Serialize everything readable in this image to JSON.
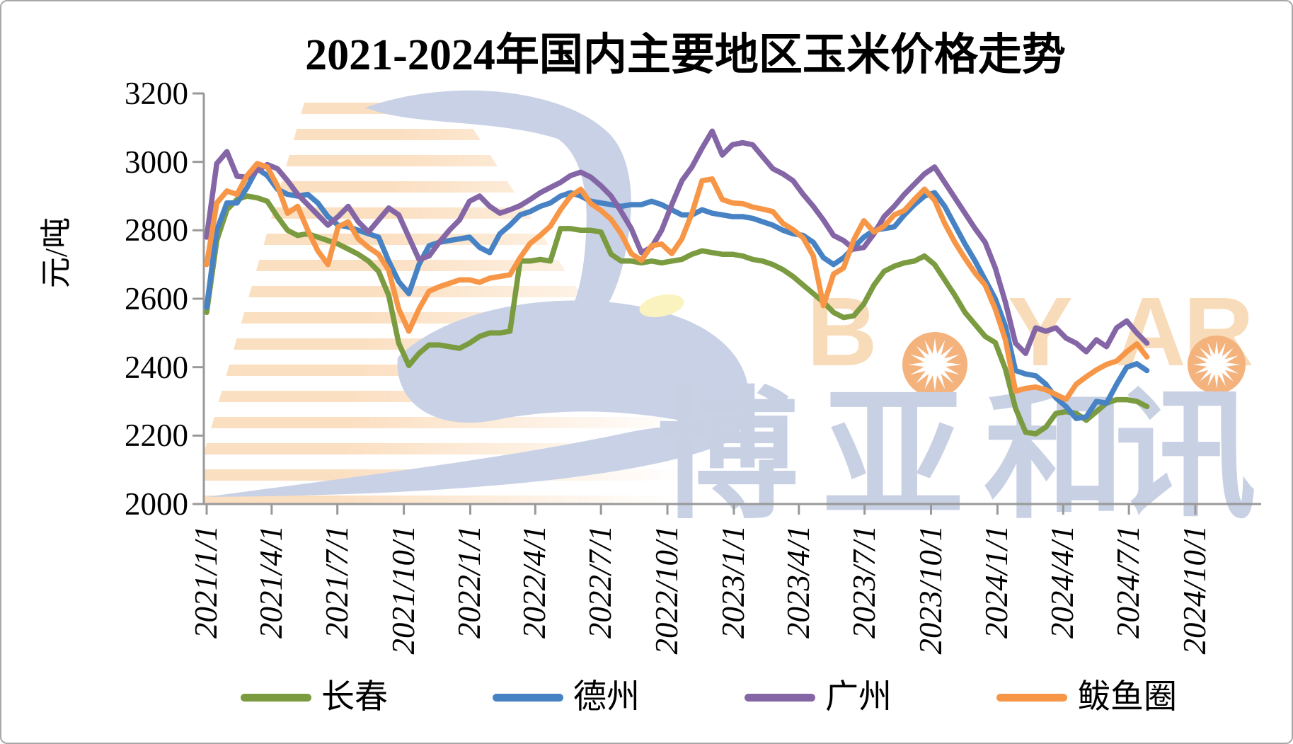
{
  "chart_data": {
    "type": "line",
    "title": "2021-2024年国内主要地区玉米价格走势",
    "y_axis_title": "元/吨",
    "ylim": [
      2000,
      3200
    ],
    "y_ticks": [
      3200,
      3000,
      2800,
      2600,
      2400,
      2200,
      2000
    ],
    "x_ticks": [
      {
        "label": "2021/1/1",
        "day": 0
      },
      {
        "label": "2021/4/1",
        "day": 90
      },
      {
        "label": "2021/7/1",
        "day": 181
      },
      {
        "label": "2021/10/1",
        "day": 273
      },
      {
        "label": "2022/1/1",
        "day": 365
      },
      {
        "label": "2022/4/1",
        "day": 455
      },
      {
        "label": "2022/7/1",
        "day": 546
      },
      {
        "label": "2022/10/1",
        "day": 638
      },
      {
        "label": "2023/1/1",
        "day": 730
      },
      {
        "label": "2023/4/1",
        "day": 820
      },
      {
        "label": "2023/7/1",
        "day": 911
      },
      {
        "label": "2023/10/1",
        "day": 1003
      },
      {
        "label": "2024/1/1",
        "day": 1095
      },
      {
        "label": "2024/4/1",
        "day": 1186
      },
      {
        "label": "2024/7/1",
        "day": 1277
      },
      {
        "label": "2024/10/1",
        "day": 1369
      }
    ],
    "x_start_date": "2021-01-01",
    "x_step_days": 14,
    "grid": false,
    "legend_position": "bottom",
    "axis_color": "#999999",
    "series": [
      {
        "name": "长春",
        "color": "#7b9b40",
        "values": [
          2560,
          2770,
          2860,
          2890,
          2900,
          2895,
          2885,
          2840,
          2800,
          2785,
          2790,
          2780,
          2770,
          2760,
          2745,
          2730,
          2710,
          2680,
          2610,
          2470,
          2405,
          2440,
          2465,
          2465,
          2460,
          2455,
          2470,
          2490,
          2500,
          2500,
          2505,
          2710,
          2710,
          2715,
          2710,
          2805,
          2805,
          2800,
          2800,
          2795,
          2730,
          2710,
          2710,
          2705,
          2710,
          2705,
          2710,
          2715,
          2730,
          2740,
          2735,
          2730,
          2730,
          2725,
          2715,
          2710,
          2700,
          2685,
          2665,
          2640,
          2615,
          2590,
          2560,
          2545,
          2550,
          2585,
          2640,
          2680,
          2695,
          2705,
          2710,
          2725,
          2700,
          2655,
          2610,
          2560,
          2525,
          2490,
          2472,
          2395,
          2280,
          2210,
          2205,
          2225,
          2265,
          2270,
          2265,
          2245,
          2270,
          2295,
          2305,
          2305,
          2300,
          2285
        ]
      },
      {
        "name": "德州",
        "color": "#4783c4",
        "values": [
          2575,
          2800,
          2880,
          2880,
          2925,
          2980,
          2960,
          2920,
          2905,
          2900,
          2905,
          2880,
          2840,
          2815,
          2810,
          2800,
          2790,
          2780,
          2710,
          2650,
          2615,
          2700,
          2755,
          2765,
          2770,
          2775,
          2780,
          2750,
          2735,
          2790,
          2815,
          2845,
          2855,
          2870,
          2880,
          2900,
          2910,
          2900,
          2885,
          2880,
          2875,
          2870,
          2875,
          2875,
          2885,
          2875,
          2860,
          2845,
          2845,
          2860,
          2850,
          2845,
          2840,
          2840,
          2835,
          2825,
          2815,
          2800,
          2790,
          2785,
          2765,
          2720,
          2700,
          2720,
          2750,
          2780,
          2800,
          2805,
          2810,
          2845,
          2875,
          2900,
          2910,
          2870,
          2815,
          2760,
          2710,
          2655,
          2600,
          2520,
          2390,
          2380,
          2375,
          2350,
          2310,
          2285,
          2250,
          2255,
          2300,
          2295,
          2350,
          2400,
          2410,
          2390
        ]
      },
      {
        "name": "广州",
        "color": "#8465a6",
        "values": [
          2780,
          2995,
          3030,
          2958,
          2955,
          2975,
          2992,
          2980,
          2945,
          2905,
          2875,
          2845,
          2815,
          2840,
          2870,
          2825,
          2795,
          2830,
          2865,
          2845,
          2780,
          2715,
          2725,
          2765,
          2800,
          2830,
          2885,
          2900,
          2870,
          2850,
          2860,
          2872,
          2890,
          2910,
          2925,
          2940,
          2960,
          2970,
          2955,
          2930,
          2900,
          2855,
          2805,
          2735,
          2750,
          2800,
          2875,
          2945,
          2985,
          3040,
          3090,
          3020,
          3050,
          3056,
          3050,
          3015,
          2980,
          2965,
          2945,
          2905,
          2870,
          2830,
          2785,
          2770,
          2745,
          2750,
          2790,
          2840,
          2870,
          2905,
          2935,
          2965,
          2985,
          2940,
          2895,
          2850,
          2805,
          2765,
          2690,
          2590,
          2470,
          2440,
          2515,
          2505,
          2515,
          2485,
          2470,
          2445,
          2480,
          2460,
          2515,
          2535,
          2500,
          2470
        ]
      },
      {
        "name": "鲅鱼圈",
        "color": "#f79646",
        "values": [
          2700,
          2880,
          2915,
          2905,
          2960,
          2995,
          2985,
          2930,
          2850,
          2870,
          2800,
          2740,
          2700,
          2810,
          2825,
          2775,
          2750,
          2730,
          2683,
          2570,
          2505,
          2570,
          2622,
          2635,
          2645,
          2655,
          2655,
          2648,
          2660,
          2665,
          2670,
          2720,
          2762,
          2785,
          2812,
          2860,
          2900,
          2920,
          2878,
          2858,
          2832,
          2790,
          2732,
          2712,
          2755,
          2760,
          2732,
          2775,
          2850,
          2945,
          2950,
          2890,
          2880,
          2878,
          2868,
          2862,
          2855,
          2820,
          2802,
          2778,
          2725,
          2580,
          2672,
          2690,
          2772,
          2828,
          2795,
          2812,
          2845,
          2858,
          2890,
          2920,
          2888,
          2820,
          2765,
          2718,
          2675,
          2640,
          2570,
          2480,
          2330,
          2338,
          2342,
          2334,
          2320,
          2306,
          2350,
          2372,
          2392,
          2408,
          2418,
          2445,
          2468,
          2430
        ]
      }
    ]
  },
  "watermark": {
    "brand_latin": [
      "B",
      "Y",
      "A",
      "R"
    ],
    "brand_cjk": [
      "博",
      "亚",
      "和",
      "讯"
    ],
    "colors": {
      "swoosh": "#c9d1e6",
      "stripes": "#f6b36b",
      "latin_letters": "#f8dcba",
      "starburst": "#f4b27d",
      "cjk_text": "#c8d0e4",
      "yellow_dot": "#fbf3bf"
    }
  }
}
